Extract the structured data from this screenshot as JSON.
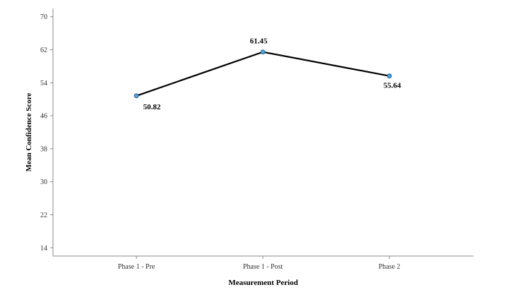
{
  "chart_data": {
    "type": "line",
    "categories": [
      "Phase 1 - Pre",
      "Phase 1 - Post",
      "Phase 2"
    ],
    "values": [
      50.82,
      61.45,
      55.64
    ],
    "data_labels": [
      "50.82",
      "61.45",
      "55.64"
    ],
    "xlabel": "Measurement Period",
    "ylabel": "Mean Confidence Score",
    "ylim": [
      12,
      72
    ],
    "yticks": [
      14,
      22,
      30,
      38,
      46,
      54,
      62,
      70
    ],
    "ytick_labels": [
      "14",
      "22",
      "30",
      "38",
      "46",
      "54",
      "62",
      "70"
    ],
    "grid": false,
    "line_color": "#000000",
    "marker_color": "#4aa3df"
  }
}
